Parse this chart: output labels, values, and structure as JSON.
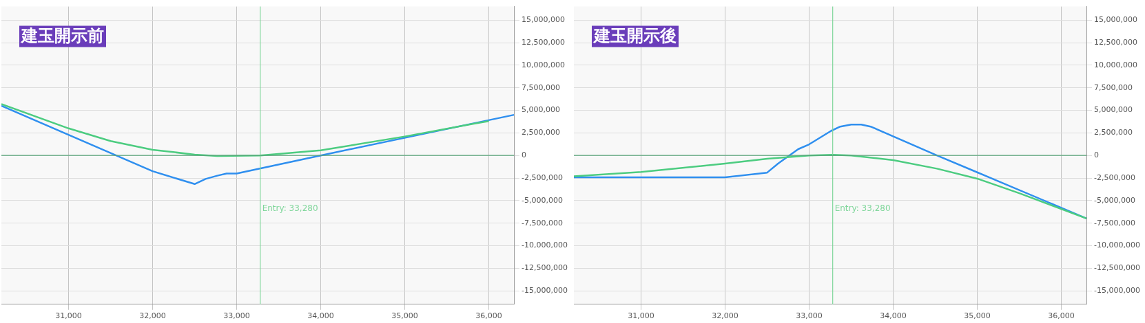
{
  "chart_data": [
    {
      "type": "line",
      "title": "建玉開示前",
      "xlim": [
        30200,
        36300
      ],
      "ylim": [
        -16500000,
        16500000
      ],
      "xticks": [
        {
          "value": 31000,
          "label": "31,000"
        },
        {
          "value": 32000,
          "label": "32,000"
        },
        {
          "value": 33000,
          "label": "33,000"
        },
        {
          "value": 34000,
          "label": "34,000"
        },
        {
          "value": 35000,
          "label": "35,000"
        },
        {
          "value": 36000,
          "label": "36,000"
        }
      ],
      "yticks": [
        {
          "value": -15000000,
          "label": "-15,000,000"
        },
        {
          "value": -12500000,
          "label": "-12,500,000"
        },
        {
          "value": -10000000,
          "label": "-10,000,000"
        },
        {
          "value": -7500000,
          "label": "-7,500,000"
        },
        {
          "value": -5000000,
          "label": "-5,000,000"
        },
        {
          "value": -2500000,
          "label": "-2,500,000"
        },
        0,
        {
          "value": 2500000,
          "label": "2,500,000"
        },
        {
          "value": 5000000,
          "label": "5,000,000"
        },
        {
          "value": 7500000,
          "label": "7,500,000"
        },
        {
          "value": 10000000,
          "label": "10,000,000"
        },
        {
          "value": 12500000,
          "label": "12,500,000"
        },
        {
          "value": 15000000,
          "label": "15,000,000"
        }
      ],
      "grid": true,
      "legend": false,
      "marker": "none",
      "line_style": "solid",
      "ref_lines": [
        {
          "axis": "x",
          "value": 33280,
          "label": "Entry: 33,280",
          "color": "#7fd69a"
        },
        {
          "axis": "y",
          "value": 0,
          "label": null,
          "color": "#5aa57a"
        }
      ],
      "series": [
        {
          "color": "#4ccc80",
          "x": [
            30200,
            31000,
            31500,
            32000,
            32500,
            32770,
            33280,
            34000,
            35000,
            35810,
            36000
          ],
          "values": [
            5700000,
            3000000,
            1600000,
            630000,
            100000,
            -70000,
            0,
            560000,
            2100000,
            3500000,
            3800000
          ]
        },
        {
          "color": "#2f8fef",
          "x": [
            30200,
            32000,
            32500,
            32630,
            32770,
            32880,
            33000,
            34000,
            36300
          ],
          "values": [
            5500000,
            -1750000,
            -3170000,
            -2600000,
            -2240000,
            -2000000,
            -2000000,
            0,
            4500000
          ]
        }
      ]
    },
    {
      "type": "line",
      "title": "建玉開示後",
      "xlim": [
        30200,
        36300
      ],
      "ylim": [
        -16500000,
        16500000
      ],
      "xticks": [
        {
          "value": 31000,
          "label": "31,000"
        },
        {
          "value": 32000,
          "label": "32,000"
        },
        {
          "value": 33000,
          "label": "33,000"
        },
        {
          "value": 34000,
          "label": "34,000"
        },
        {
          "value": 35000,
          "label": "35,000"
        },
        {
          "value": 36000,
          "label": "36,000"
        }
      ],
      "yticks": [
        {
          "value": -15000000,
          "label": "-15,000,000"
        },
        {
          "value": -12500000,
          "label": "-12,500,000"
        },
        {
          "value": -10000000,
          "label": "-10,000,000"
        },
        {
          "value": -7500000,
          "label": "-7,500,000"
        },
        {
          "value": -5000000,
          "label": "-5,000,000"
        },
        {
          "value": -2500000,
          "label": "-2,500,000"
        },
        0,
        {
          "value": 2500000,
          "label": "2,500,000"
        },
        {
          "value": 5000000,
          "label": "5,000,000"
        },
        {
          "value": 7500000,
          "label": "7,500,000"
        },
        {
          "value": 10000000,
          "label": "10,000,000"
        },
        {
          "value": 12500000,
          "label": "12,500,000"
        },
        {
          "value": 15000000,
          "label": "15,000,000"
        }
      ],
      "grid": true,
      "legend": false,
      "marker": "none",
      "line_style": "solid",
      "ref_lines": [
        {
          "axis": "x",
          "value": 33280,
          "label": "Entry: 33,280",
          "color": "#7fd69a"
        },
        {
          "axis": "y",
          "value": 0,
          "label": null,
          "color": "#5aa57a"
        }
      ],
      "series": [
        {
          "color": "#4ccc80",
          "x": [
            30200,
            31000,
            32000,
            32500,
            33000,
            33280,
            33500,
            34000,
            34520,
            35000,
            35500,
            36300
          ],
          "values": [
            -2300000,
            -1830000,
            -900000,
            -370000,
            0,
            70000,
            0,
            -520000,
            -1460000,
            -2570000,
            -4180000,
            -6980000
          ]
        },
        {
          "color": "#2f8fef",
          "x": [
            30200,
            32000,
            32500,
            32630,
            32870,
            33000,
            33260,
            33370,
            33500,
            33620,
            33740,
            34520,
            35000,
            36300
          ],
          "values": [
            -2430000,
            -2430000,
            -1900000,
            -900000,
            700000,
            1230000,
            2720000,
            3200000,
            3430000,
            3430000,
            3170000,
            0,
            -1870000,
            -6980000
          ]
        }
      ]
    }
  ]
}
